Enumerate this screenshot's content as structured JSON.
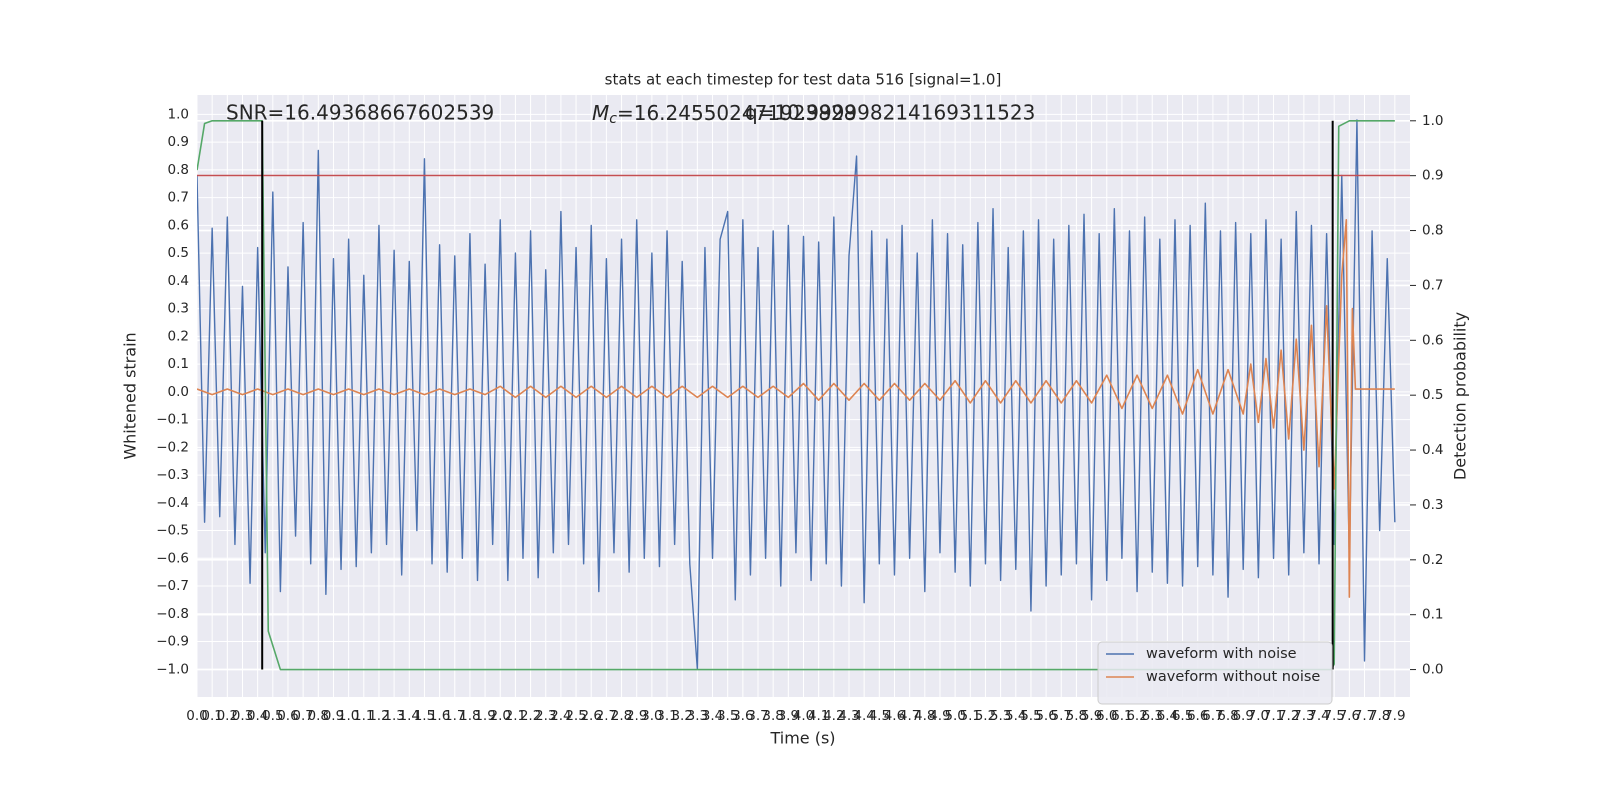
{
  "chart_data": {
    "type": "line",
    "title": "stats at each timestep for test data 516 [signal=1.0]",
    "xlabel": "Time (s)",
    "ylabel": "Whitened strain",
    "y2label": "Detection probability",
    "annotations": [
      {
        "text": "SNR=16.49368667602539"
      },
      {
        "symbol": "M",
        "subscript": "c",
        "text": "=16.245502471923828"
      },
      {
        "text": "q=10.999998214169311523"
      }
    ],
    "xlim": [
      0,
      8
    ],
    "ylim": [
      -1.1,
      1.07
    ],
    "y2lim": [
      -0.05,
      1.047
    ],
    "grid": true,
    "legend": "lower right",
    "xticks": [
      {
        "value": 0,
        "label": "0.0"
      },
      0.1,
      0.2,
      0.3,
      0.4,
      0.5,
      0.6,
      0.7,
      0.8,
      0.9,
      {
        "value": 1,
        "label": "1.0"
      },
      1.1,
      1.2,
      1.3,
      1.4,
      1.5,
      1.6,
      1.7,
      1.8,
      1.9,
      {
        "value": 2,
        "label": "2.0"
      },
      2.1,
      2.2,
      2.3,
      2.4,
      2.5,
      2.6,
      2.7,
      2.8,
      2.9,
      {
        "value": 3,
        "label": "3.0"
      },
      3.1,
      3.2,
      3.3,
      3.4,
      3.5,
      3.6,
      3.7,
      3.8,
      3.9,
      {
        "value": 4,
        "label": "4.0"
      },
      4.1,
      4.2,
      4.3,
      4.4,
      4.5,
      4.6,
      4.7,
      4.8,
      4.9,
      {
        "value": 5,
        "label": "5.0"
      },
      5.1,
      5.2,
      5.3,
      5.4,
      5.5,
      5.6,
      5.7,
      5.8,
      5.9,
      {
        "value": 6,
        "label": "6.0"
      },
      6.1,
      6.2,
      6.3,
      6.4,
      6.5,
      6.6,
      6.7,
      6.8,
      6.9,
      {
        "value": 7,
        "label": "7.0"
      },
      7.1,
      7.2,
      7.3,
      7.4,
      7.5,
      7.6,
      7.7,
      7.8,
      7.9
    ],
    "yticks": [
      {
        "value": -1,
        "label": "−1.0"
      },
      {
        "value": -0.9,
        "label": "−0.9"
      },
      {
        "value": -0.8,
        "label": "−0.8"
      },
      {
        "value": -0.7,
        "label": "−0.7"
      },
      {
        "value": -0.6,
        "label": "−0.6"
      },
      {
        "value": -0.5,
        "label": "−0.5"
      },
      {
        "value": -0.4,
        "label": "−0.4"
      },
      {
        "value": -0.3,
        "label": "−0.3"
      },
      {
        "value": -0.2,
        "label": "−0.2"
      },
      {
        "value": -0.1,
        "label": "−0.1"
      },
      {
        "value": 0,
        "label": "0.0"
      },
      0.1,
      0.2,
      0.3,
      0.4,
      0.5,
      0.6,
      0.7,
      0.8,
      0.9,
      {
        "value": 1,
        "label": "1.0"
      }
    ],
    "y2ticks": [
      {
        "value": 0,
        "label": "0.0"
      },
      0.1,
      0.2,
      0.3,
      0.4,
      0.5,
      0.6,
      0.7,
      0.8,
      0.9,
      {
        "value": 1,
        "label": "1.0"
      }
    ],
    "x": [
      0,
      0.05,
      0.1,
      0.15,
      0.2,
      0.25,
      0.3,
      0.35,
      0.4,
      0.45,
      0.5,
      0.55,
      0.6,
      0.65,
      0.7,
      0.75,
      0.8,
      0.85,
      0.9,
      0.95,
      1,
      1.05,
      1.1,
      1.15,
      1.2,
      1.25,
      1.3,
      1.35,
      1.4,
      1.45,
      1.5,
      1.55,
      1.6,
      1.65,
      1.7,
      1.75,
      1.8,
      1.85,
      1.9,
      1.95,
      2,
      2.05,
      2.1,
      2.15,
      2.2,
      2.25,
      2.3,
      2.35,
      2.4,
      2.45,
      2.5,
      2.55,
      2.6,
      2.65,
      2.7,
      2.75,
      2.8,
      2.85,
      2.9,
      2.95,
      3,
      3.05,
      3.1,
      3.15,
      3.2,
      3.25,
      3.3,
      3.35,
      3.4,
      3.45,
      3.5,
      3.55,
      3.6,
      3.65,
      3.7,
      3.75,
      3.8,
      3.85,
      3.9,
      3.95,
      4,
      4.05,
      4.1,
      4.15,
      4.2,
      4.25,
      4.3,
      4.35,
      4.4,
      4.45,
      4.5,
      4.55,
      4.6,
      4.65,
      4.7,
      4.75,
      4.8,
      4.85,
      4.9,
      4.95,
      5,
      5.05,
      5.1,
      5.15,
      5.2,
      5.25,
      5.3,
      5.35,
      5.4,
      5.45,
      5.5,
      5.55,
      5.6,
      5.65,
      5.7,
      5.75,
      5.8,
      5.85,
      5.9,
      5.95,
      6,
      6.05,
      6.1,
      6.15,
      6.2,
      6.25,
      6.3,
      6.35,
      6.4,
      6.45,
      6.5,
      6.55,
      6.6,
      6.65,
      6.7,
      6.75,
      6.8,
      6.85,
      6.9,
      6.95,
      7,
      7.05,
      7.1,
      7.15,
      7.2,
      7.25,
      7.3,
      7.35,
      7.4,
      7.45,
      7.5,
      7.55,
      7.6,
      7.65,
      7.7,
      7.75,
      7.8,
      7.85,
      7.9
    ],
    "series": [
      {
        "name": "waveform with noise",
        "color": "#4c72b0",
        "values": [
          0.78,
          -0.47,
          0.59,
          -0.45,
          0.63,
          -0.55,
          0.38,
          -0.69,
          0.52,
          -0.58,
          0.72,
          -0.72,
          0.45,
          -0.52,
          0.61,
          -0.62,
          0.87,
          -0.73,
          0.48,
          -0.64,
          0.55,
          -0.63,
          0.42,
          -0.58,
          0.6,
          -0.55,
          0.51,
          -0.66,
          0.47,
          -0.5,
          0.84,
          -0.62,
          0.53,
          -0.65,
          0.49,
          -0.6,
          0.57,
          -0.68,
          0.46,
          -0.55,
          0.62,
          -0.68,
          0.5,
          -0.6,
          0.58,
          -0.67,
          0.44,
          -0.58,
          0.65,
          -0.55,
          0.52,
          -0.62,
          0.6,
          -0.72,
          0.48,
          -0.58,
          0.55,
          -0.65,
          0.62,
          -0.6,
          0.5,
          -0.63,
          0.58,
          -0.55,
          0.47,
          -0.62,
          -1.0,
          0.52,
          -0.6,
          0.55,
          0.65,
          -0.75,
          0.62,
          -0.66,
          0.52,
          -0.6,
          0.58,
          -0.7,
          0.6,
          -0.58,
          0.56,
          -0.68,
          0.54,
          -0.62,
          0.63,
          -0.7,
          0.49,
          0.85,
          -0.76,
          0.58,
          -0.62,
          0.55,
          -0.66,
          0.6,
          -0.6,
          0.5,
          -0.72,
          0.62,
          -0.58,
          0.57,
          -0.65,
          0.53,
          -0.7,
          0.61,
          -0.62,
          0.66,
          -0.68,
          0.52,
          -0.64,
          0.58,
          -0.79,
          0.62,
          -0.7,
          0.55,
          -0.66,
          0.6,
          -0.62,
          0.64,
          -0.75,
          0.57,
          -0.68,
          0.66,
          -0.6,
          0.58,
          -0.72,
          0.63,
          -0.65,
          0.55,
          -0.69,
          0.62,
          -0.7,
          0.6,
          -0.63,
          0.68,
          -0.66,
          0.58,
          -0.74,
          0.61,
          -0.64,
          0.57,
          -0.67,
          0.62,
          -0.6,
          0.55,
          -0.66,
          0.65,
          -0.58,
          0.6,
          -0.62,
          0.57,
          -0.55,
          0.78,
          -0.6,
          0.98,
          -0.97,
          0.58,
          -0.5,
          0.48,
          -0.47
        ]
      },
      {
        "name": "waveform without noise",
        "color": "#dd8452",
        "x": [
          0,
          0.1,
          0.2,
          0.3,
          0.4,
          0.5,
          0.6,
          0.7,
          0.8,
          0.9,
          1,
          1.1,
          1.2,
          1.3,
          1.4,
          1.5,
          1.6,
          1.7,
          1.8,
          1.9,
          2,
          2.1,
          2.2,
          2.3,
          2.4,
          2.5,
          2.6,
          2.7,
          2.8,
          2.9,
          3,
          3.1,
          3.2,
          3.3,
          3.4,
          3.5,
          3.6,
          3.7,
          3.8,
          3.9,
          4,
          4.1,
          4.2,
          4.3,
          4.4,
          4.5,
          4.6,
          4.7,
          4.8,
          4.9,
          5,
          5.1,
          5.2,
          5.3,
          5.4,
          5.5,
          5.6,
          5.7,
          5.8,
          5.9,
          6,
          6.1,
          6.2,
          6.3,
          6.4,
          6.5,
          6.6,
          6.7,
          6.8,
          6.9,
          6.95,
          7,
          7.05,
          7.1,
          7.15,
          7.2,
          7.25,
          7.3,
          7.35,
          7.4,
          7.45,
          7.5,
          7.55,
          7.58,
          7.6,
          7.62,
          7.64,
          7.9
        ],
        "values": [
          0.01,
          -0.01,
          0.01,
          -0.01,
          0.01,
          -0.01,
          0.01,
          -0.01,
          0.01,
          -0.01,
          0.01,
          -0.01,
          0.01,
          -0.01,
          0.01,
          -0.01,
          0.01,
          -0.01,
          0.01,
          -0.01,
          0.02,
          -0.02,
          0.02,
          -0.02,
          0.02,
          -0.02,
          0.02,
          -0.02,
          0.02,
          -0.02,
          0.02,
          -0.02,
          0.02,
          -0.02,
          0.02,
          -0.02,
          0.02,
          -0.02,
          0.02,
          -0.02,
          0.03,
          -0.03,
          0.03,
          -0.03,
          0.03,
          -0.03,
          0.03,
          -0.03,
          0.03,
          -0.03,
          0.04,
          -0.04,
          0.04,
          -0.04,
          0.04,
          -0.04,
          0.04,
          -0.04,
          0.04,
          -0.04,
          0.06,
          -0.06,
          0.06,
          -0.06,
          0.06,
          -0.08,
          0.08,
          -0.08,
          0.08,
          -0.08,
          0.1,
          -0.11,
          0.12,
          -0.13,
          0.15,
          -0.17,
          0.19,
          -0.21,
          0.24,
          -0.27,
          0.31,
          -0.35,
          0.42,
          0.62,
          -0.74,
          0.3,
          0.01,
          0.01
        ]
      },
      {
        "color": "#55a868",
        "axis": "y2",
        "x": [
          0,
          0.05,
          0.1,
          0.2,
          0.43,
          0.47,
          0.55,
          7.48,
          7.5,
          7.53,
          7.6,
          7.9
        ],
        "values": [
          0.91,
          0.995,
          1.0,
          1.0,
          1.0,
          0.07,
          0.0,
          0.0,
          0.01,
          0.99,
          1.0,
          1.0
        ]
      }
    ],
    "hlines": [
      {
        "y": 0.78,
        "color": "#c44e52"
      }
    ],
    "vlines": [
      {
        "x": 0.43,
        "ymin": 0,
        "ymax": 1,
        "axis": "y2",
        "color": "#000000"
      },
      {
        "x": 7.49,
        "ymin": 0,
        "ymax": 1,
        "axis": "y2",
        "color": "#000000"
      }
    ]
  }
}
